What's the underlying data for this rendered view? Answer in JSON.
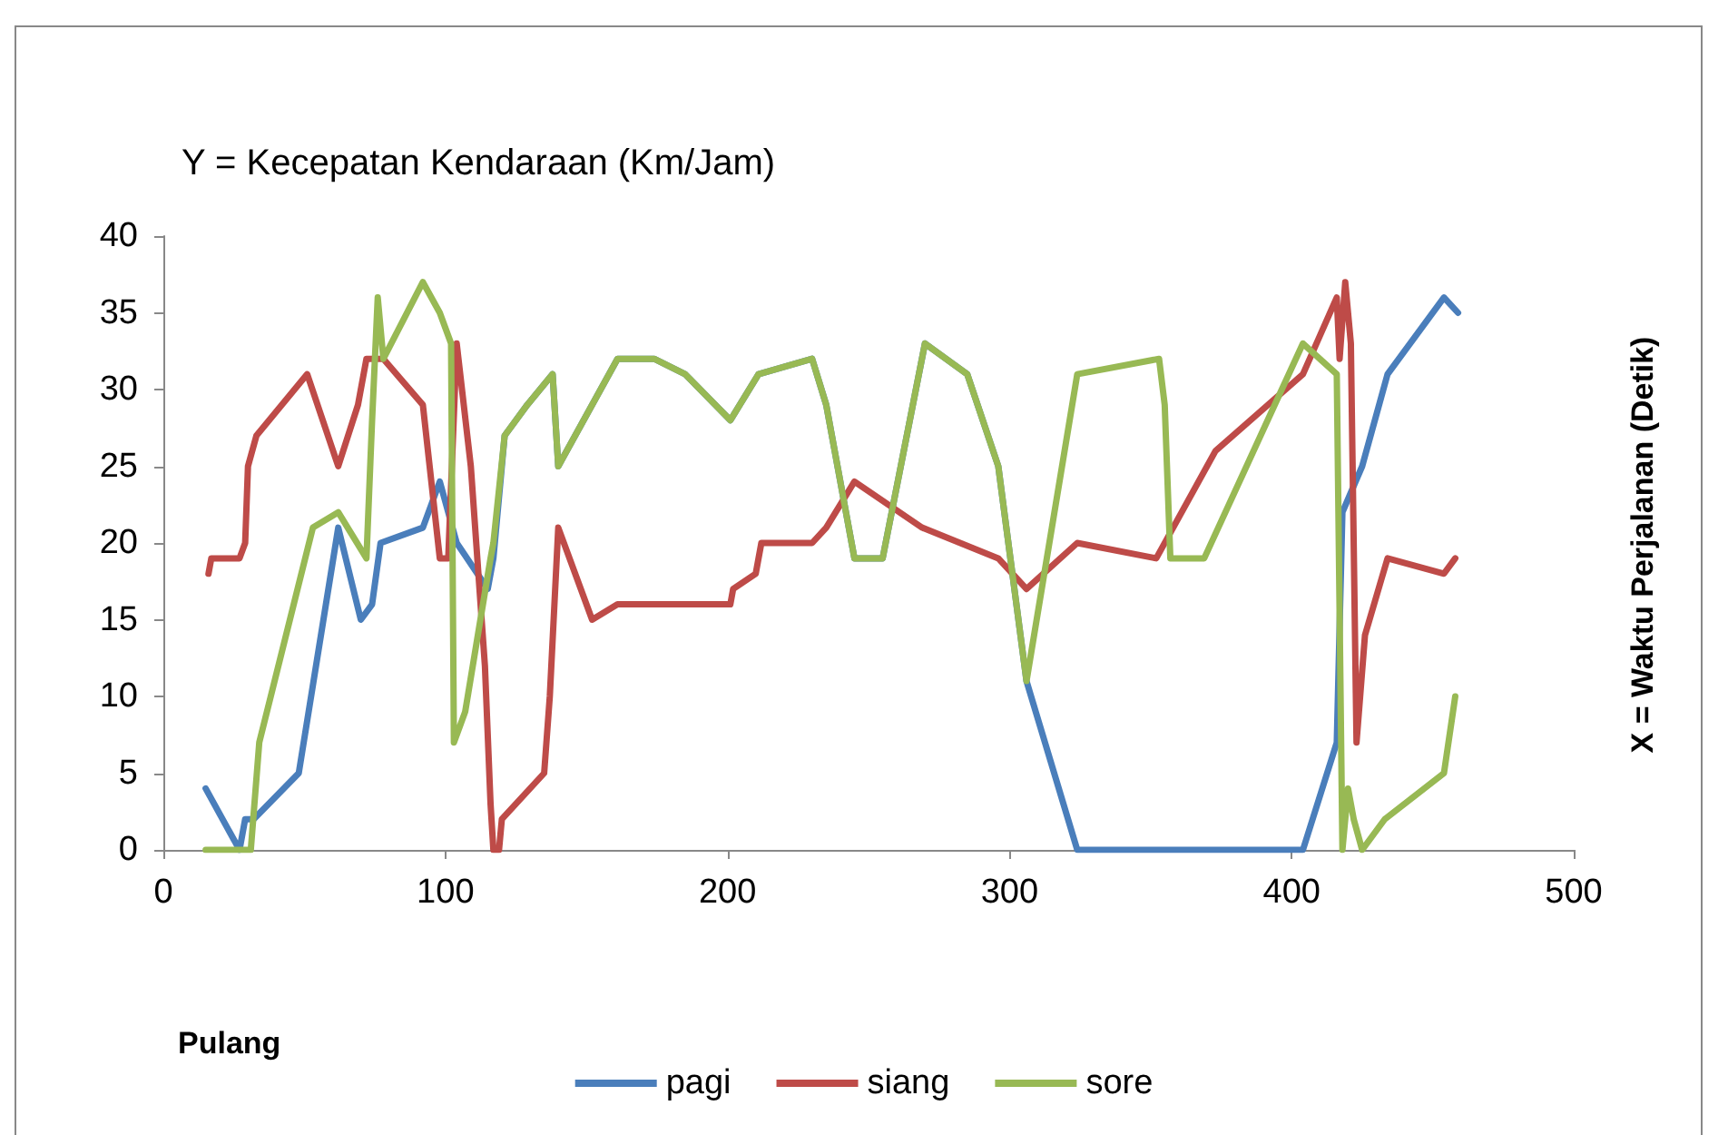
{
  "chart_data": {
    "type": "line",
    "ylabel": "Y = Kecepatan Kendaraan (Km/Jam)",
    "annotations": [
      "X = Waktu Perjalanan (Detik)",
      "Pulang"
    ],
    "xlim": [
      0,
      500
    ],
    "xticks": [
      0,
      100,
      200,
      300,
      400,
      500
    ],
    "ylim": [
      0,
      40
    ],
    "yticks": [
      0,
      5,
      10,
      15,
      20,
      25,
      30,
      35,
      40
    ],
    "grid": false,
    "legend": "bottom",
    "marker": "none",
    "line_style": "solid",
    "series": [
      {
        "name": "pagi",
        "color": "#4a7ebb",
        "x": [
          15,
          27,
          29,
          32,
          48,
          62,
          70,
          74,
          77,
          92,
          98,
          104,
          115,
          117,
          121,
          129,
          138,
          140,
          161,
          174,
          185,
          201,
          211,
          230,
          235,
          245,
          255,
          270,
          285,
          296,
          306,
          324,
          404,
          416,
          418,
          425,
          434,
          454,
          459
        ],
        "values": [
          4,
          0,
          2,
          2,
          5,
          21,
          15,
          16,
          20,
          21,
          24,
          20,
          17,
          19,
          27,
          29,
          31,
          25,
          32,
          32,
          31,
          28,
          31,
          32,
          29,
          19,
          19,
          33,
          31,
          25,
          11,
          0,
          0,
          7,
          22,
          25,
          31,
          36,
          35
        ]
      },
      {
        "name": "siang",
        "color": "#be4b48",
        "x": [
          16,
          17,
          27,
          29,
          30,
          33,
          51,
          62,
          69,
          72,
          78,
          92,
          98,
          101,
          104,
          109,
          114,
          116,
          117,
          119,
          120,
          135,
          137,
          140,
          152,
          161,
          201,
          202,
          210,
          212,
          230,
          235,
          245,
          269,
          296,
          306,
          324,
          352,
          373,
          404,
          416,
          417,
          419,
          421,
          423,
          426,
          434,
          454,
          458
        ],
        "values": [
          18,
          19,
          19,
          20,
          25,
          27,
          31,
          25,
          29,
          32,
          32,
          29,
          19,
          19,
          33,
          25,
          12,
          3,
          0,
          0,
          2,
          5,
          10,
          21,
          15,
          16,
          16,
          17,
          18,
          20,
          20,
          21,
          24,
          21,
          19,
          17,
          20,
          19,
          26,
          31,
          36,
          32,
          37,
          33,
          7,
          14,
          19,
          18,
          19
        ]
      },
      {
        "name": "sore",
        "color": "#98b954",
        "x": [
          15,
          31,
          34,
          53,
          62,
          72,
          74,
          76,
          78,
          92,
          98,
          102,
          103,
          107,
          116,
          117,
          121,
          129,
          138,
          140,
          161,
          174,
          185,
          201,
          211,
          230,
          235,
          245,
          255,
          270,
          285,
          296,
          306,
          324,
          353,
          355,
          357,
          369,
          404,
          416,
          418,
          420,
          422,
          425,
          433,
          454,
          458
        ],
        "values": [
          0,
          0,
          7,
          21,
          22,
          19,
          28,
          36,
          32,
          37,
          35,
          33,
          7,
          9,
          19,
          20,
          27,
          29,
          31,
          25,
          32,
          32,
          31,
          28,
          31,
          32,
          29,
          19,
          19,
          33,
          31,
          25,
          11,
          31,
          32,
          29,
          19,
          19,
          33,
          31,
          0,
          4,
          2,
          0,
          2,
          5,
          10
        ]
      }
    ]
  }
}
